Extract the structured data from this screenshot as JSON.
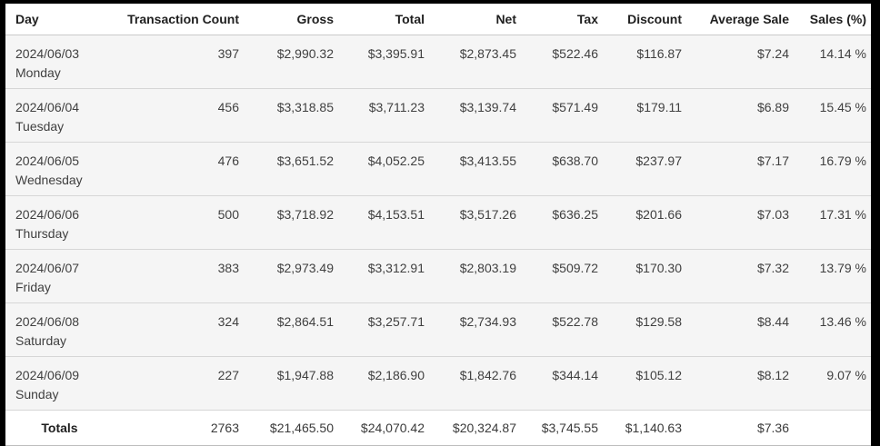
{
  "page": {
    "frame_color": "#000000",
    "table_bg": "#ffffff",
    "row_bg": "#f5f5f5",
    "divider_color": "#d6d6d6",
    "header_text_color": "#1f1f1f",
    "body_text_color": "#404040"
  },
  "table": {
    "columns": [
      "Day",
      "Transaction Count",
      "Gross",
      "Total",
      "Net",
      "Tax",
      "Discount",
      "Average Sale",
      "Sales (%)"
    ],
    "rows": [
      {
        "date": "2024/06/03",
        "day": "Monday",
        "transaction_count": "397",
        "gross": "$2,990.32",
        "total": "$3,395.91",
        "net": "$2,873.45",
        "tax": "$522.46",
        "discount": "$116.87",
        "average_sale": "$7.24",
        "sales_pct": "14.14 %"
      },
      {
        "date": "2024/06/04",
        "day": "Tuesday",
        "transaction_count": "456",
        "gross": "$3,318.85",
        "total": "$3,711.23",
        "net": "$3,139.74",
        "tax": "$571.49",
        "discount": "$179.11",
        "average_sale": "$6.89",
        "sales_pct": "15.45 %"
      },
      {
        "date": "2024/06/05",
        "day": "Wednesday",
        "transaction_count": "476",
        "gross": "$3,651.52",
        "total": "$4,052.25",
        "net": "$3,413.55",
        "tax": "$638.70",
        "discount": "$237.97",
        "average_sale": "$7.17",
        "sales_pct": "16.79 %"
      },
      {
        "date": "2024/06/06",
        "day": "Thursday",
        "transaction_count": "500",
        "gross": "$3,718.92",
        "total": "$4,153.51",
        "net": "$3,517.26",
        "tax": "$636.25",
        "discount": "$201.66",
        "average_sale": "$7.03",
        "sales_pct": "17.31 %"
      },
      {
        "date": "2024/06/07",
        "day": "Friday",
        "transaction_count": "383",
        "gross": "$2,973.49",
        "total": "$3,312.91",
        "net": "$2,803.19",
        "tax": "$509.72",
        "discount": "$170.30",
        "average_sale": "$7.32",
        "sales_pct": "13.79 %"
      },
      {
        "date": "2024/06/08",
        "day": "Saturday",
        "transaction_count": "324",
        "gross": "$2,864.51",
        "total": "$3,257.71",
        "net": "$2,734.93",
        "tax": "$522.78",
        "discount": "$129.58",
        "average_sale": "$8.44",
        "sales_pct": "13.46 %"
      },
      {
        "date": "2024/06/09",
        "day": "Sunday",
        "transaction_count": "227",
        "gross": "$1,947.88",
        "total": "$2,186.90",
        "net": "$1,842.76",
        "tax": "$344.14",
        "discount": "$105.12",
        "average_sale": "$8.12",
        "sales_pct": "9.07 %"
      }
    ],
    "totals": {
      "label": "Totals",
      "transaction_count": "2763",
      "gross": "$21,465.50",
      "total": "$24,070.42",
      "net": "$20,324.87",
      "tax": "$3,745.55",
      "discount": "$1,140.63",
      "average_sale": "$7.36",
      "sales_pct": ""
    }
  }
}
